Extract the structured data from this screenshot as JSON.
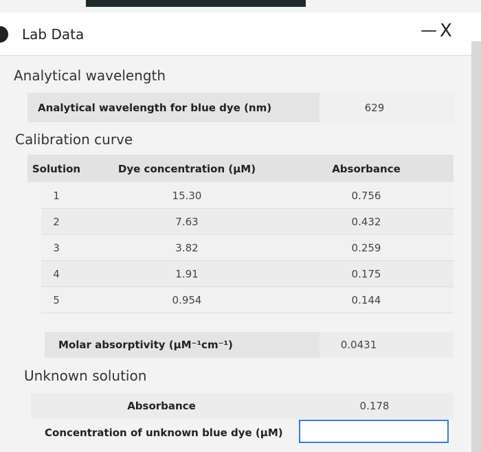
{
  "window": {
    "title": "Lab Data",
    "minimize": "—",
    "close": "X"
  },
  "analytical_wavelength": {
    "heading": "Analytical wavelength",
    "label": "Analytical wavelength for blue dye (nm)",
    "value": "629"
  },
  "calibration_curve": {
    "heading": "Calibration curve",
    "table": {
      "columns": [
        "Solution",
        "Dye concentration (μM)",
        "Absorbance"
      ],
      "rows": [
        [
          "1",
          "15.30",
          "0.756"
        ],
        [
          "2",
          "7.63",
          "0.432"
        ],
        [
          "3",
          "3.82",
          "0.259"
        ],
        [
          "4",
          "1.91",
          "0.175"
        ],
        [
          "5",
          "0.954",
          "0.144"
        ]
      ]
    }
  },
  "molar_absorptivity": {
    "label": "Molar absorptivity (μM⁻¹cm⁻¹)",
    "value": "0.0431"
  },
  "unknown_solution": {
    "heading": "Unknown solution",
    "absorbance_label": "Absorbance",
    "absorbance_value": "0.178",
    "concentration_label": "Concentration of unknown blue dye (μM)"
  }
}
